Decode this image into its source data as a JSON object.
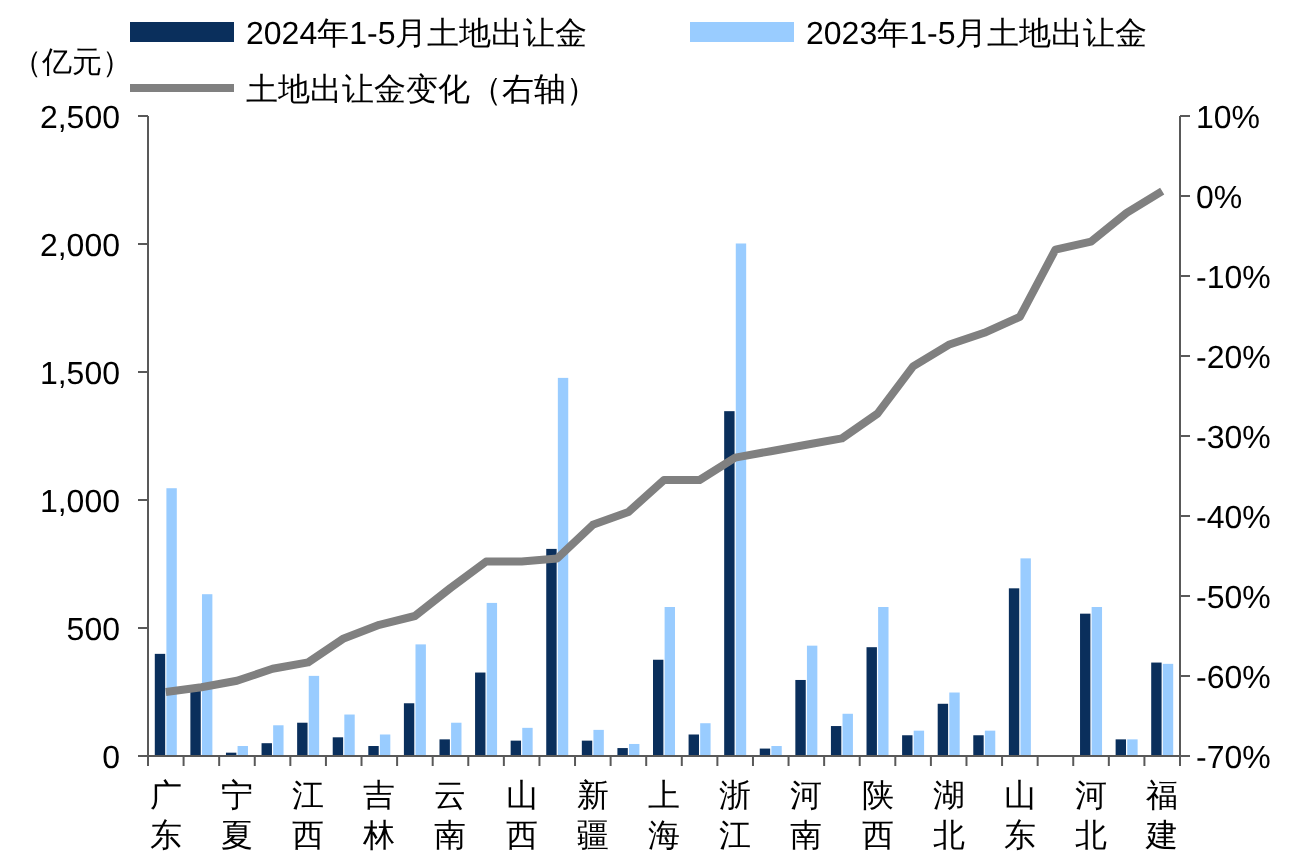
{
  "chart_data": {
    "type": "bar",
    "ylabel": "（亿元）",
    "legend": "top",
    "grid": false,
    "categories": [
      "广东",
      null,
      "宁夏",
      null,
      "江西",
      null,
      "吉林",
      null,
      "云南",
      null,
      "山西",
      null,
      "新疆",
      null,
      "上海",
      null,
      "浙江",
      null,
      "河南",
      null,
      "陕西",
      null,
      "湖北",
      null,
      "山东",
      null,
      "河北",
      null,
      "福建"
    ],
    "series": [
      {
        "name": "2024年1-5月土地出让金",
        "color": "#0a2f5c",
        "values": [
          399,
          256,
          13,
          50,
          130,
          73,
          39,
          206,
          65,
          326,
          60,
          809,
          60,
          31,
          376,
          84,
          1347,
          29,
          297,
          117,
          425,
          81,
          204,
          81,
          655,
          0,
          556,
          65,
          365
        ]
      },
      {
        "name": "2023年1-5月土地出让金",
        "color": "#99ccff",
        "values": [
          1046,
          632,
          39,
          120,
          313,
          162,
          84,
          436,
          130,
          598,
          110,
          1477,
          102,
          47,
          582,
          128,
          2002,
          39,
          431,
          165,
          582,
          99,
          248,
          99,
          772,
          0,
          582,
          65,
          360
        ]
      },
      {
        "name": "土地出让金变化（右轴）",
        "type": "line",
        "axis": "y2",
        "color": "#808080",
        "values": [
          -62.0,
          -61.4,
          -60.6,
          -59.1,
          -58.3,
          -55.3,
          -53.6,
          -52.5,
          -49.0,
          -45.7,
          -45.7,
          -45.3,
          -41.1,
          -39.5,
          -35.5,
          -35.5,
          -32.7,
          -31.9,
          -31.1,
          -30.3,
          -27.2,
          -21.3,
          -18.6,
          -17.1,
          -15.1,
          -6.7,
          -5.7,
          -2.1,
          0.6
        ]
      }
    ],
    "ylim": [
      0,
      2500
    ],
    "yticks": [
      0,
      500,
      {
        "value": 1000,
        "label": "1,000"
      },
      {
        "value": 1500,
        "label": "1,500"
      },
      {
        "value": 2000,
        "label": "2,000"
      },
      {
        "value": 2500,
        "label": "2,500"
      }
    ],
    "y2lim": [
      -70,
      10
    ],
    "y2ticks": [
      {
        "value": -70,
        "label": "-70%"
      },
      {
        "value": -60,
        "label": "-60%"
      },
      {
        "value": -50,
        "label": "-50%"
      },
      {
        "value": -40,
        "label": "-40%"
      },
      {
        "value": -30,
        "label": "-30%"
      },
      {
        "value": -20,
        "label": "-20%"
      },
      {
        "value": -10,
        "label": "-10%"
      },
      {
        "value": 0,
        "label": "0%"
      },
      {
        "value": 10,
        "label": "10%"
      }
    ]
  }
}
